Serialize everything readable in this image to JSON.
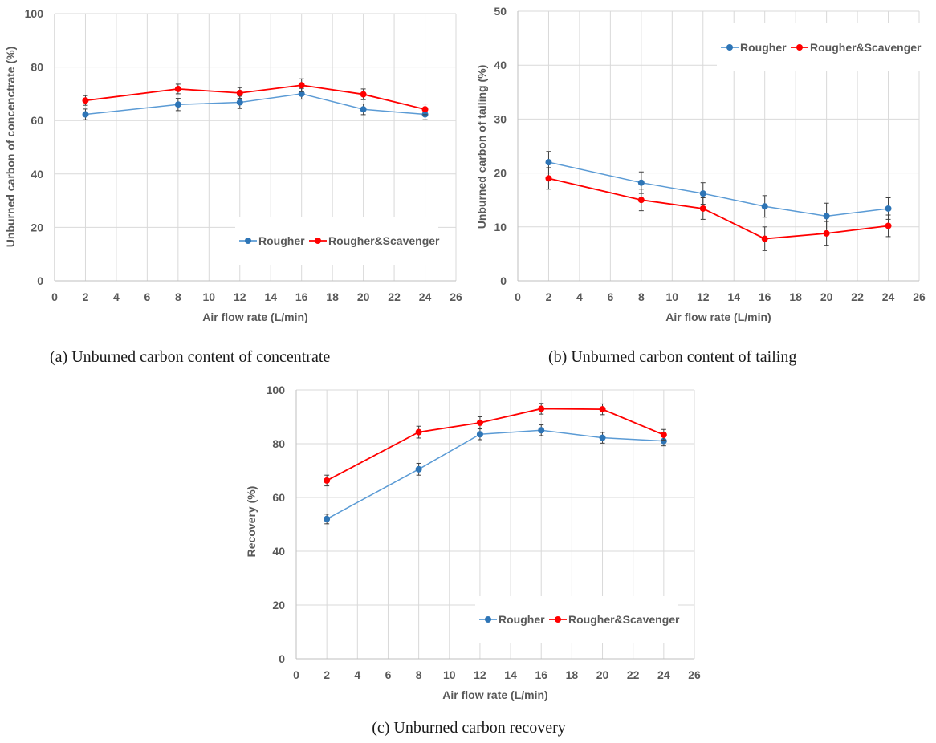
{
  "figure": {
    "captions": [
      "(a) Unburned carbon content of concentrate",
      "(b) Unburned carbon content of tailing",
      "(c) Unburned carbon recovery"
    ]
  },
  "colors": {
    "rougher": "#2e75b6",
    "rougher_line": "#5b9bd5",
    "scavenger": "#ff0000"
  },
  "chart_data": [
    {
      "type": "line",
      "title": "",
      "xlabel": "Air flow rate (L/min)",
      "ylabel": "Unburned carbon of concenctrate (%)",
      "xlim": [
        0,
        26
      ],
      "ylim": [
        0,
        100
      ],
      "xticks": [
        0,
        2,
        4,
        6,
        8,
        10,
        12,
        14,
        16,
        18,
        20,
        22,
        24,
        26
      ],
      "yticks": [
        0,
        20,
        40,
        60,
        80,
        100
      ],
      "grid": true,
      "legend_position": "bottom-right",
      "x": [
        2,
        8,
        12,
        16,
        20,
        24
      ],
      "series": [
        {
          "name": "Rougher",
          "values": [
            62.3,
            66.0,
            66.8,
            70.0,
            64.2,
            62.3
          ],
          "error": [
            2,
            2.3,
            2.3,
            2,
            2,
            2
          ]
        },
        {
          "name": "Rougher&Scavenger",
          "values": [
            67.5,
            71.8,
            70.3,
            73.2,
            69.8,
            64.2
          ],
          "error": [
            1.8,
            1.8,
            2,
            2.4,
            2,
            2
          ]
        }
      ]
    },
    {
      "type": "line",
      "title": "",
      "xlabel": "Air flow rate (L/min)",
      "ylabel": "Unburned carbon of tailing (%)",
      "xlim": [
        0,
        26
      ],
      "ylim": [
        0,
        50
      ],
      "xticks": [
        0,
        2,
        4,
        6,
        8,
        10,
        12,
        14,
        16,
        18,
        20,
        22,
        24,
        26
      ],
      "yticks": [
        0,
        10,
        20,
        30,
        40,
        50
      ],
      "grid": true,
      "legend_position": "top-right",
      "x": [
        2,
        8,
        12,
        16,
        20,
        24
      ],
      "series": [
        {
          "name": "Rougher",
          "values": [
            22.0,
            18.2,
            16.2,
            13.8,
            12.0,
            13.4
          ],
          "error": [
            2,
            2,
            2,
            2,
            2.4,
            2
          ]
        },
        {
          "name": "Rougher&Scavenger",
          "values": [
            19.0,
            15.0,
            13.4,
            7.8,
            8.8,
            10.2
          ],
          "error": [
            2,
            2,
            2,
            2.2,
            2.2,
            2
          ]
        }
      ]
    },
    {
      "type": "line",
      "title": "",
      "xlabel": "Air flow rate (L/min)",
      "ylabel": "Recovery (%)",
      "xlim": [
        0,
        26
      ],
      "ylim": [
        0,
        100
      ],
      "xticks": [
        0,
        2,
        4,
        6,
        8,
        10,
        12,
        14,
        16,
        18,
        20,
        22,
        24,
        26
      ],
      "yticks": [
        0,
        20,
        40,
        60,
        80,
        100
      ],
      "grid": true,
      "legend_position": "bottom-right",
      "x": [
        2,
        8,
        12,
        16,
        20,
        24
      ],
      "series": [
        {
          "name": "Rougher",
          "values": [
            52.0,
            70.5,
            83.5,
            85.0,
            82.2,
            81.0
          ],
          "error": [
            1.8,
            2.2,
            2,
            2,
            2,
            1.8
          ]
        },
        {
          "name": "Rougher&Scavenger",
          "values": [
            66.3,
            84.3,
            87.8,
            93.0,
            92.8,
            83.3
          ],
          "error": [
            2,
            2.2,
            2.2,
            2,
            2,
            2
          ]
        }
      ]
    }
  ]
}
